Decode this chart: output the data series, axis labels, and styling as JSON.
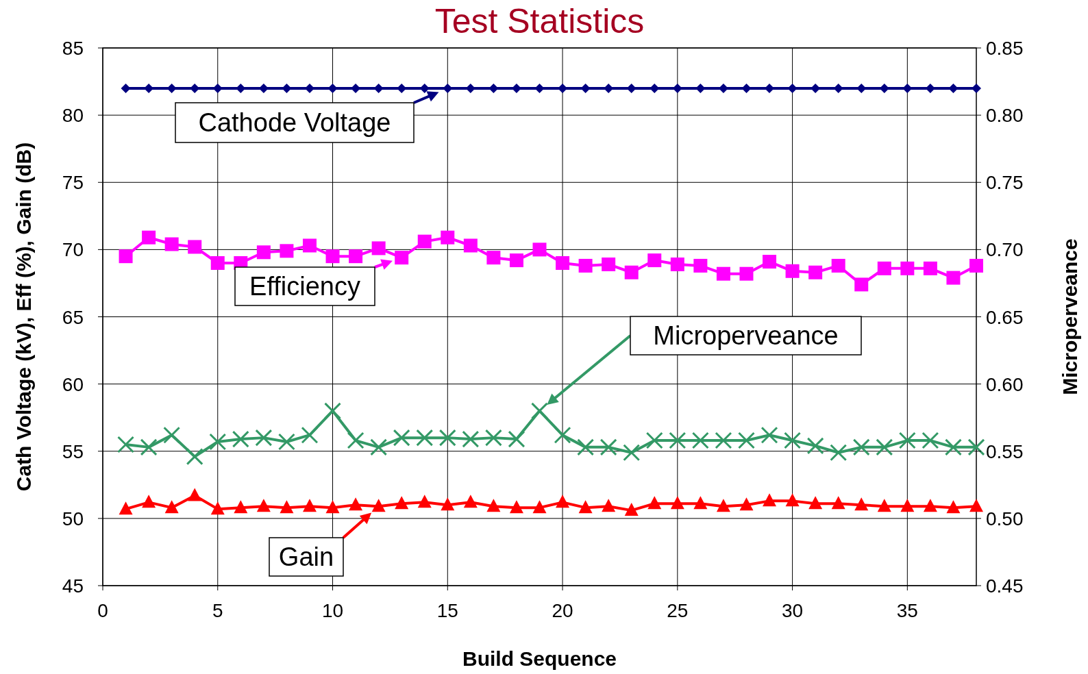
{
  "chart_data": {
    "type": "line",
    "title": "Test Statistics",
    "xlabel": "Build Sequence",
    "ylabel": "Cath Voltage (kV), Eff (%), Gain (dB)",
    "y2label": "Microperveance",
    "x": [
      1,
      2,
      3,
      4,
      5,
      6,
      7,
      8,
      9,
      10,
      11,
      12,
      13,
      14,
      15,
      16,
      17,
      18,
      19,
      20,
      21,
      22,
      23,
      24,
      25,
      26,
      27,
      28,
      29,
      30,
      31,
      32,
      33,
      34,
      35,
      36,
      37,
      38
    ],
    "series": [
      {
        "name": "Cathode Voltage",
        "color": "#000080",
        "marker": "diamond",
        "values": [
          82,
          82,
          82,
          82,
          82,
          82,
          82,
          82,
          82,
          82,
          82,
          82,
          82,
          82,
          82,
          82,
          82,
          82,
          82,
          82,
          82,
          82,
          82,
          82,
          82,
          82,
          82,
          82,
          82,
          82,
          82,
          82,
          82,
          82,
          82,
          82,
          82,
          82
        ]
      },
      {
        "name": "Efficiency",
        "color": "#ff00ff",
        "marker": "square",
        "values": [
          69.5,
          70.9,
          70.4,
          70.2,
          69.0,
          69.0,
          69.8,
          69.9,
          70.3,
          69.5,
          69.5,
          70.1,
          69.4,
          70.6,
          70.9,
          70.3,
          69.4,
          69.2,
          70.0,
          69.0,
          68.8,
          68.9,
          68.3,
          69.2,
          68.9,
          68.8,
          68.2,
          68.2,
          69.1,
          68.4,
          68.3,
          68.8,
          67.4,
          68.6,
          68.6,
          68.6,
          67.9,
          68.8
        ]
      },
      {
        "name": "Microperveance",
        "color": "#339966",
        "marker": "cross",
        "axis": "y2",
        "values": [
          0.555,
          0.553,
          0.562,
          0.546,
          0.557,
          0.559,
          0.56,
          0.557,
          0.562,
          0.58,
          0.558,
          0.553,
          0.56,
          0.56,
          0.56,
          0.559,
          0.56,
          0.559,
          0.58,
          0.562,
          0.553,
          0.553,
          0.549,
          0.558,
          0.558,
          0.558,
          0.558,
          0.558,
          0.562,
          0.558,
          0.554,
          0.549,
          0.553,
          0.553,
          0.558,
          0.558,
          0.553,
          0.553
        ]
      },
      {
        "name": "Gain",
        "color": "#ff0000",
        "marker": "triangle",
        "values": [
          50.7,
          51.2,
          50.8,
          51.7,
          50.7,
          50.8,
          50.9,
          50.8,
          50.9,
          50.8,
          51.0,
          50.9,
          51.1,
          51.2,
          51.0,
          51.2,
          50.9,
          50.8,
          50.8,
          51.2,
          50.8,
          50.9,
          50.6,
          51.1,
          51.1,
          51.1,
          50.9,
          51.0,
          51.3,
          51.3,
          51.1,
          51.1,
          51.0,
          50.9,
          50.9,
          50.9,
          50.8,
          50.9
        ]
      }
    ],
    "xlim": [
      0,
      38
    ],
    "xticks": [
      0,
      5,
      10,
      15,
      20,
      25,
      30,
      35
    ],
    "ylim": [
      45,
      85
    ],
    "yticks": [
      45,
      50,
      55,
      60,
      65,
      70,
      75,
      80,
      85
    ],
    "y2lim": [
      0.45,
      0.85
    ],
    "y2ticks": [
      {
        "value": 0.45,
        "label": "0.45"
      },
      {
        "value": 0.5,
        "label": "0.50"
      },
      {
        "value": 0.55,
        "label": "0.55"
      },
      {
        "value": 0.6,
        "label": "0.60"
      },
      {
        "value": 0.65,
        "label": "0.65"
      },
      {
        "value": 0.7,
        "label": "0.70"
      },
      {
        "value": 0.75,
        "label": "0.75"
      },
      {
        "value": 0.8,
        "label": "0.80"
      },
      {
        "value": 0.85,
        "label": "0.85"
      }
    ],
    "grid": true,
    "legend": "left",
    "line_style": "solid"
  }
}
